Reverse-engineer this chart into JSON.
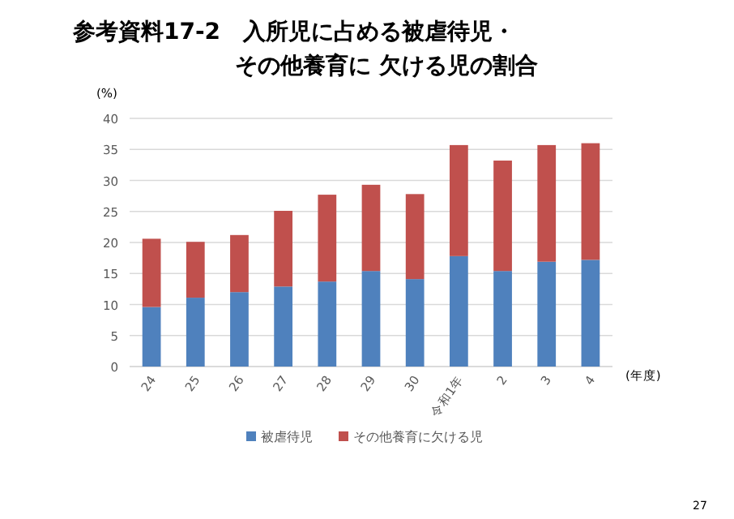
{
  "chart_data": {
    "type": "bar",
    "stacked": true,
    "title": "参考資料17-2　入所児に占める被虐待児・",
    "subtitle": "その他養育に 欠ける児の割合",
    "ylabel": "(%)",
    "xlabel": "(年度)",
    "categories": [
      "24",
      "25",
      "26",
      "27",
      "28",
      "29",
      "30",
      "令和1年",
      "2",
      "3",
      "4"
    ],
    "series": [
      {
        "name": "被虐待児",
        "color": "#4f81bd",
        "values": [
          9.6,
          11.1,
          12.0,
          12.9,
          13.7,
          15.4,
          14.1,
          17.8,
          15.4,
          16.9,
          17.2
        ]
      },
      {
        "name": "その他養育に欠ける児",
        "color": "#c0504d",
        "values": [
          11.0,
          9.0,
          9.2,
          12.2,
          14.0,
          13.9,
          13.7,
          17.9,
          17.8,
          18.8,
          18.8
        ]
      }
    ],
    "ylim": [
      0,
      40
    ],
    "yticks": [
      0,
      5,
      10,
      15,
      20,
      25,
      30,
      35,
      40
    ],
    "grid": "y",
    "legend": "bottom",
    "annotations": [
      "27"
    ]
  }
}
